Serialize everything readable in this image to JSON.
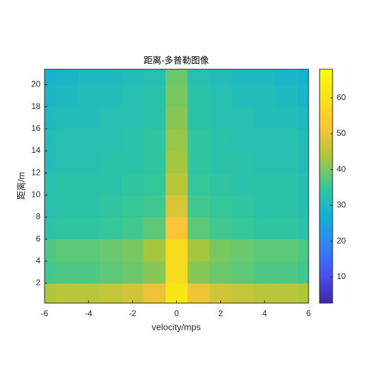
{
  "chart_data": {
    "type": "heatmap",
    "title": "距离-多普勒图像",
    "xlabel": "velocity/mps",
    "ylabel": "距离/m",
    "colormap": "parula",
    "x": [
      -6,
      -5,
      -4,
      -3,
      -2,
      -1,
      0,
      1,
      2,
      3,
      4,
      5,
      6
    ],
    "y": [
      1,
      3,
      5,
      7,
      9,
      11,
      13,
      15,
      17,
      19,
      21
    ],
    "z": [
      [
        44,
        45,
        45,
        46,
        47,
        50,
        62,
        50,
        47,
        46,
        45,
        45,
        44
      ],
      [
        36,
        37,
        37,
        38,
        39,
        41,
        58,
        41,
        39,
        38,
        37,
        37,
        36
      ],
      [
        37,
        38,
        38,
        39,
        40,
        43,
        58,
        43,
        40,
        39,
        38,
        38,
        37
      ],
      [
        33,
        34,
        34,
        35,
        36,
        38,
        52,
        38,
        36,
        35,
        34,
        34,
        33
      ],
      [
        32,
        33,
        33,
        34,
        35,
        36,
        48,
        36,
        35,
        34,
        33,
        33,
        32
      ],
      [
        32,
        33,
        33,
        33,
        34,
        35,
        45,
        35,
        34,
        33,
        33,
        33,
        32
      ],
      [
        31,
        32,
        32,
        33,
        33,
        34,
        43,
        34,
        33,
        33,
        32,
        32,
        31
      ],
      [
        31,
        32,
        32,
        32,
        33,
        34,
        42,
        34,
        33,
        32,
        32,
        32,
        31
      ],
      [
        30,
        31,
        31,
        32,
        32,
        33,
        41,
        33,
        32,
        32,
        31,
        31,
        30
      ],
      [
        29,
        30,
        31,
        31,
        32,
        33,
        40,
        33,
        32,
        31,
        31,
        30,
        29
      ],
      [
        28,
        29,
        30,
        30,
        31,
        32,
        39,
        32,
        31,
        30,
        30,
        29,
        28
      ]
    ],
    "xlim": [
      -6,
      6
    ],
    "xticks": [
      -6,
      -4,
      -2,
      0,
      2,
      4,
      6
    ],
    "ylim": [
      0.2,
      21.4
    ],
    "yticks": [
      2,
      4,
      6,
      8,
      10,
      12,
      14,
      16,
      18,
      20
    ],
    "clim": [
      2.7,
      68
    ],
    "cticks": [
      10,
      20,
      30,
      40,
      50,
      60
    ]
  }
}
